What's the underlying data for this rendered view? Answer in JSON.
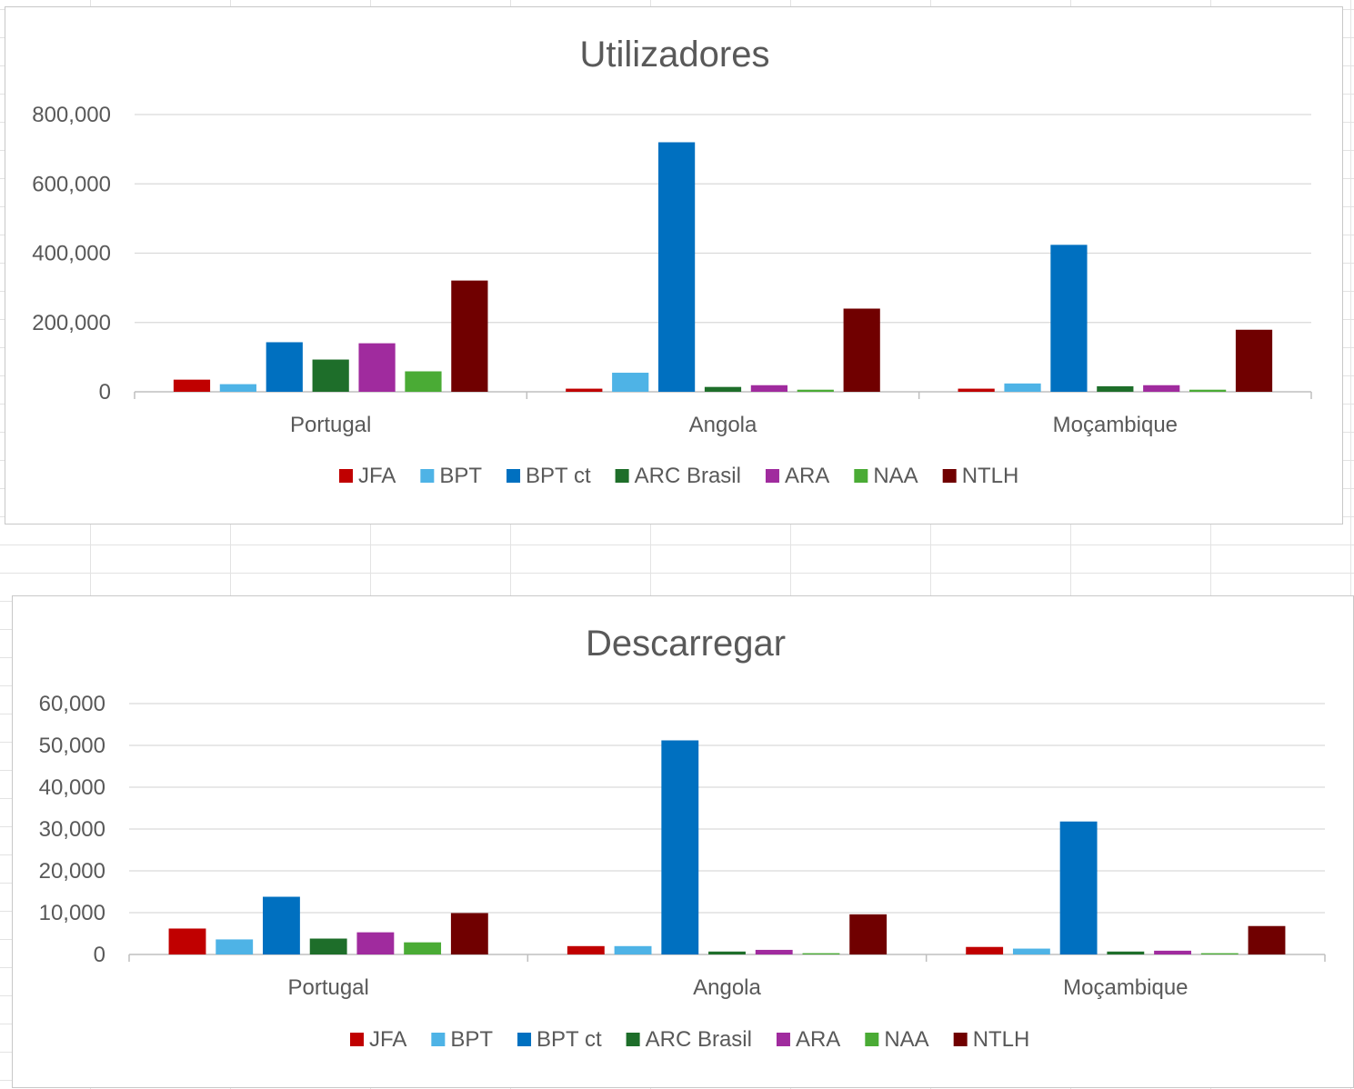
{
  "colors": {
    "JFA": "#c00000",
    "BPT": "#4eb3e6",
    "BPT ct": "#0070c0",
    "ARC Brasil": "#1e6e2a",
    "ARA": "#a02b9e",
    "NAA": "#4aab35",
    "NTLH": "#700000"
  },
  "chart_data": [
    {
      "type": "bar",
      "title": "Utilizadores",
      "categories": [
        "Portugal",
        "Angola",
        "Moçambique"
      ],
      "ylim": [
        0,
        800000
      ],
      "yticks": [
        "0",
        "200,000",
        "400,000",
        "600,000",
        "800,000"
      ],
      "grid": true,
      "legend": "bottom",
      "series": [
        {
          "name": "JFA",
          "values": [
            35000,
            9000,
            9000
          ]
        },
        {
          "name": "BPT",
          "values": [
            22000,
            55000,
            24000
          ]
        },
        {
          "name": "BPT ct",
          "values": [
            143000,
            720000,
            424000
          ]
        },
        {
          "name": "ARC Brasil",
          "values": [
            93000,
            14000,
            16000
          ]
        },
        {
          "name": "ARA",
          "values": [
            140000,
            19000,
            19000
          ]
        },
        {
          "name": "NAA",
          "values": [
            59000,
            6000,
            6000
          ]
        },
        {
          "name": "NTLH",
          "values": [
            321000,
            240000,
            179000
          ]
        }
      ]
    },
    {
      "type": "bar",
      "title": "Descarregar",
      "categories": [
        "Portugal",
        "Angola",
        "Moçambique"
      ],
      "ylim": [
        0,
        60000
      ],
      "yticks": [
        "0",
        "10,000",
        "20,000",
        "30,000",
        "40,000",
        "50,000",
        "60,000"
      ],
      "grid": true,
      "legend": "bottom",
      "series": [
        {
          "name": "JFA",
          "values": [
            6200,
            2000,
            1800
          ]
        },
        {
          "name": "BPT",
          "values": [
            3600,
            2000,
            1400
          ]
        },
        {
          "name": "BPT ct",
          "values": [
            13800,
            51200,
            31800
          ]
        },
        {
          "name": "ARC Brasil",
          "values": [
            3800,
            700,
            700
          ]
        },
        {
          "name": "ARA",
          "values": [
            5300,
            1100,
            900
          ]
        },
        {
          "name": "NAA",
          "values": [
            2900,
            300,
            300
          ]
        },
        {
          "name": "NTLH",
          "values": [
            9900,
            9600,
            6800
          ]
        }
      ]
    }
  ]
}
